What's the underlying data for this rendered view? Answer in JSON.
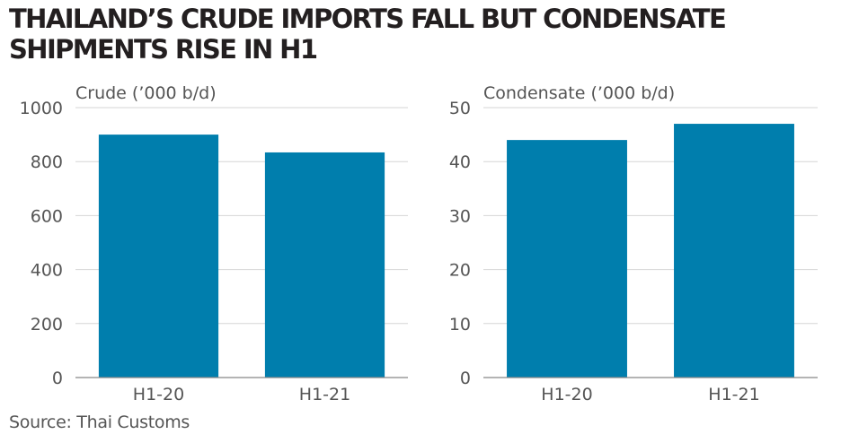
{
  "title": "THAILAND’S CRUDE IMPORTS FALL BUT CONDENSATE SHIPMENTS RISE IN H1",
  "source": "Source: Thai Customs",
  "colors": {
    "bar": "#007ead",
    "grid": "#d6d6d6",
    "axis": "#888888",
    "text": "#555555",
    "title": "#231f20"
  },
  "chart_data": [
    {
      "type": "bar",
      "ylabel": "Crude (’000 b/d)",
      "categories": [
        "H1-20",
        "H1-21"
      ],
      "values": [
        900,
        834
      ],
      "ylim": [
        0,
        1000
      ],
      "yticks": [
        0,
        200,
        400,
        600,
        800,
        1000
      ],
      "grid": true
    },
    {
      "type": "bar",
      "ylabel": "Condensate (’000 b/d)",
      "categories": [
        "H1-20",
        "H1-21"
      ],
      "values": [
        44,
        47
      ],
      "ylim": [
        0,
        50
      ],
      "yticks": [
        0,
        10,
        20,
        30,
        40,
        50
      ],
      "grid": true
    }
  ]
}
